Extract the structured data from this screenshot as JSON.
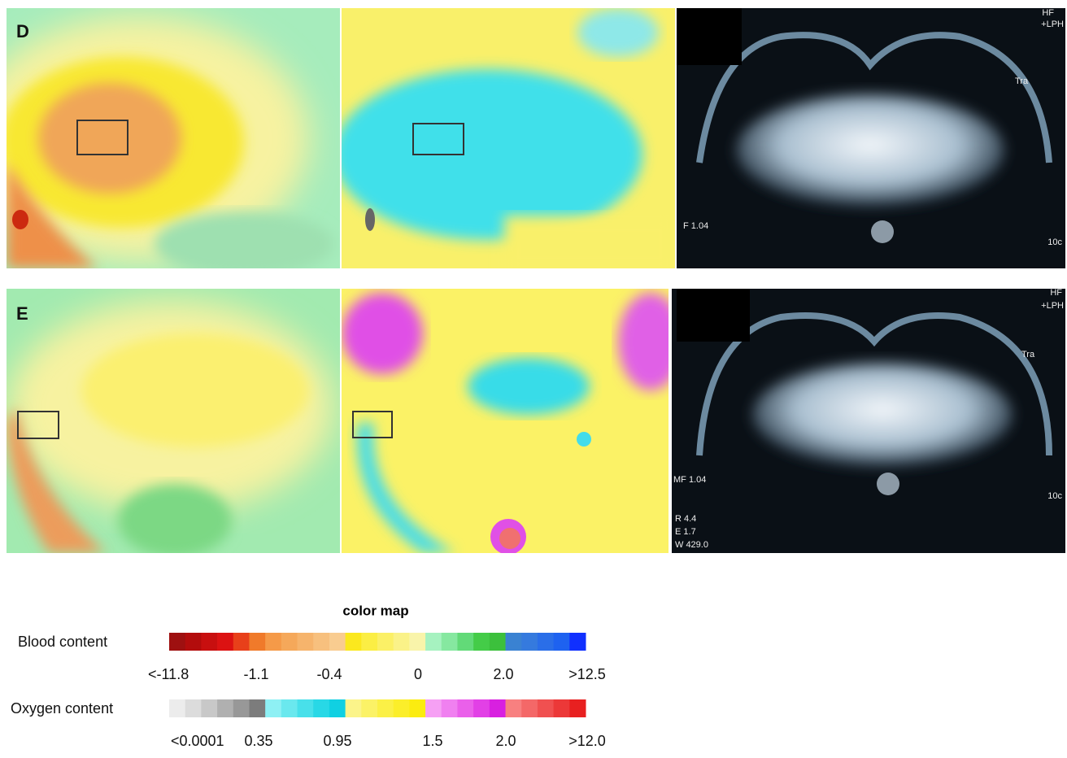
{
  "panels": [
    {
      "label": "D",
      "mri_labels": [
        "HF",
        "+LPH",
        "Tra",
        "F 1.04",
        "10c"
      ]
    },
    {
      "label": "E",
      "mri_labels": [
        "HF",
        "+LPH",
        "Tra",
        "MF 1.04",
        "10c",
        "R 4.4",
        "E 1.7",
        "W 429.0"
      ]
    }
  ],
  "colormap": {
    "title": "color map",
    "rows": [
      {
        "label": "Blood content",
        "ticks": [
          "<-11.8",
          "-1.1",
          "-0.4",
          "0",
          "2.0",
          ">12.5"
        ],
        "colors": [
          "#9e1010",
          "#b30c0c",
          "#c80f0f",
          "#dc1212",
          "#e8401a",
          "#f07a2a",
          "#f59a48",
          "#f5a85a",
          "#f6b46c",
          "#f7c07e",
          "#f9cc90",
          "#fbe81e",
          "#fbee44",
          "#fbf066",
          "#faf288",
          "#f9f4aa",
          "#a6f2c0",
          "#86e8a0",
          "#62da78",
          "#44cc48",
          "#3cc03c",
          "#3a82d2",
          "#357ade",
          "#2a6ee8",
          "#1e62f0",
          "#1030ff"
        ]
      },
      {
        "label": "Oxygen content",
        "ticks": [
          "<0.0001",
          "0.35",
          "0.95",
          "1.5",
          "2.0",
          ">12.0"
        ],
        "colors": [
          "#ececec",
          "#dcdcdc",
          "#c8c8c8",
          "#b0b0b0",
          "#989898",
          "#7c7c7c",
          "#8ef0f4",
          "#6ae8ee",
          "#48e0ea",
          "#28d8e6",
          "#10d0e2",
          "#fbf48a",
          "#fbf266",
          "#fbf046",
          "#fbee2a",
          "#fbec10",
          "#f6a0f4",
          "#f080f0",
          "#ea60ea",
          "#e240e6",
          "#d820e0",
          "#f88080",
          "#f46868",
          "#f05050",
          "#ec3838",
          "#e82020"
        ]
      }
    ]
  }
}
